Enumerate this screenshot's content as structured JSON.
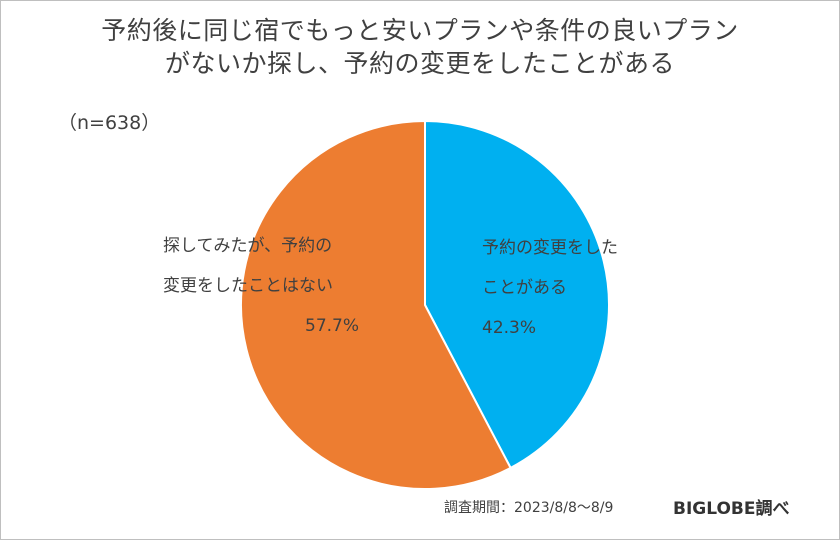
{
  "chart_data": {
    "type": "pie",
    "title_lines": [
      "予約後に同じ宿でもっと安いプランや条件の良いプラン",
      "がないか探し、予約の変更をしたことがある"
    ],
    "sample_size": "（n=638）",
    "start_angle_deg": 0,
    "direction": "clockwise",
    "slices": [
      {
        "label_lines": [
          "予約の変更をした",
          "ことがある"
        ],
        "value": 42.3,
        "value_label": "42.3%",
        "color": "#00B0F0"
      },
      {
        "label_lines": [
          "探してみたが、予約の",
          "変更をしたことはない"
        ],
        "value": 57.7,
        "value_label": "57.7%",
        "color": "#ED7D31"
      }
    ]
  },
  "footer": {
    "period": "調査期間：2023/8/8～8/9",
    "brand": "BIGLOBE調べ"
  }
}
